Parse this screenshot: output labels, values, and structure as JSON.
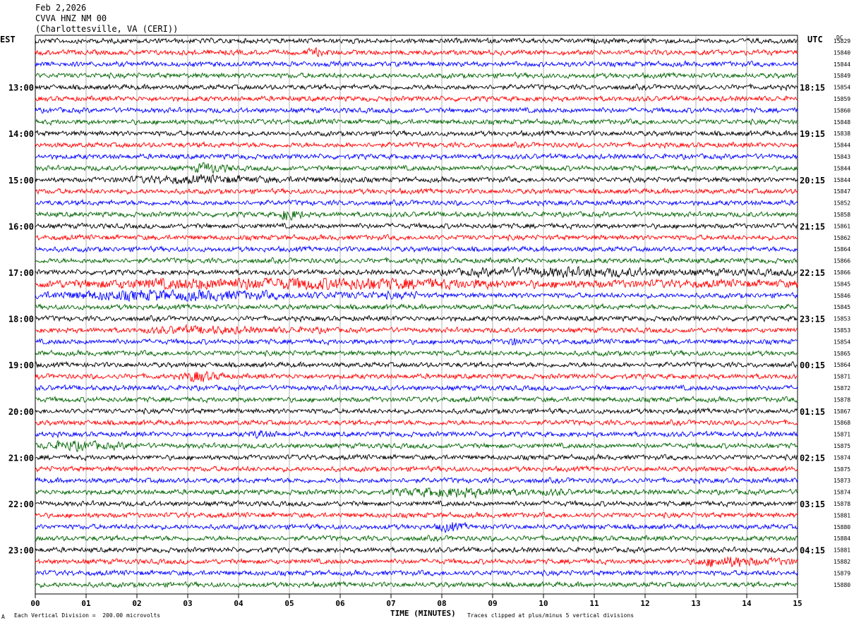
{
  "header": {
    "date": "Feb 2,2026",
    "station": "CVVA HNZ NM 00",
    "location": "(Charlottesville, VA (CERI))"
  },
  "left_tz": "EST",
  "right_tz": "UTC",
  "dc_label": "DC",
  "footer": {
    "scale_note": "Each Vertical Division =  200.00 microvolts",
    "clip_note": "Traces clipped at plus/minus 5 vertical divisions",
    "corner_mark": "A"
  },
  "colors": {
    "trace_cycle": [
      "#000000",
      "#ff0000",
      "#0000ff",
      "#006400"
    ],
    "grid": "#808080"
  },
  "chart_data": {
    "type": "line",
    "title": "",
    "xlabel": "TIME (MINUTES)",
    "xlim": [
      0,
      15
    ],
    "x_ticks": [
      "00",
      "01",
      "02",
      "03",
      "04",
      "05",
      "06",
      "07",
      "08",
      "09",
      "10",
      "11",
      "12",
      "13",
      "14",
      "15"
    ],
    "hour_labels_left": [
      "13:00",
      "14:00",
      "15:00",
      "16:00",
      "17:00",
      "18:00",
      "19:00",
      "20:00",
      "21:00",
      "22:00",
      "23:00"
    ],
    "hour_labels_right": [
      "18:15",
      "19:15",
      "20:15",
      "21:15",
      "22:15",
      "23:15",
      "00:15",
      "01:15",
      "02:15",
      "03:15",
      "04:15"
    ],
    "first_labeled_trace_index": 4,
    "traces_per_hour": 4,
    "dc_offsets": [
      15829,
      15840,
      15844,
      15849,
      15854,
      15859,
      15860,
      15848,
      15838,
      15844,
      15843,
      15844,
      15844,
      15847,
      15852,
      15858,
      15861,
      15862,
      15864,
      15866,
      15866,
      15845,
      15846,
      15845,
      15853,
      15853,
      15854,
      15865,
      15864,
      15871,
      15872,
      15878,
      15867,
      15868,
      15871,
      15875,
      15874,
      15875,
      15873,
      15874,
      15878,
      15881,
      15880,
      15884,
      15881,
      15882,
      15879,
      15880
    ],
    "events": [
      {
        "trace": 1,
        "start_min": 5.3,
        "end_min": 5.8,
        "amp": 2.0
      },
      {
        "trace": 11,
        "start_min": 3.1,
        "end_min": 3.9,
        "amp": 2.5
      },
      {
        "trace": 12,
        "start_min": 1.5,
        "end_min": 6.5,
        "amp": 1.8
      },
      {
        "trace": 15,
        "start_min": 4.8,
        "end_min": 5.3,
        "amp": 3.0
      },
      {
        "trace": 20,
        "start_min": 8.0,
        "end_min": 15.0,
        "amp": 2.2
      },
      {
        "trace": 21,
        "start_min": 0.0,
        "end_min": 15.0,
        "amp": 2.8
      },
      {
        "trace": 22,
        "start_min": 0.0,
        "end_min": 7.5,
        "amp": 2.5
      },
      {
        "trace": 25,
        "start_min": 2.0,
        "end_min": 5.8,
        "amp": 1.8
      },
      {
        "trace": 26,
        "start_min": 9.3,
        "end_min": 9.7,
        "amp": 2.0
      },
      {
        "trace": 29,
        "start_min": 2.9,
        "end_min": 3.8,
        "amp": 2.8
      },
      {
        "trace": 34,
        "start_min": 4.2,
        "end_min": 4.8,
        "amp": 2.0
      },
      {
        "trace": 35,
        "start_min": 0.1,
        "end_min": 2.0,
        "amp": 2.2
      },
      {
        "trace": 39,
        "start_min": 7.0,
        "end_min": 10.5,
        "amp": 2.2
      },
      {
        "trace": 42,
        "start_min": 7.9,
        "end_min": 8.5,
        "amp": 2.5
      },
      {
        "trace": 45,
        "start_min": 12.9,
        "end_min": 15.0,
        "amp": 2.5
      }
    ]
  }
}
